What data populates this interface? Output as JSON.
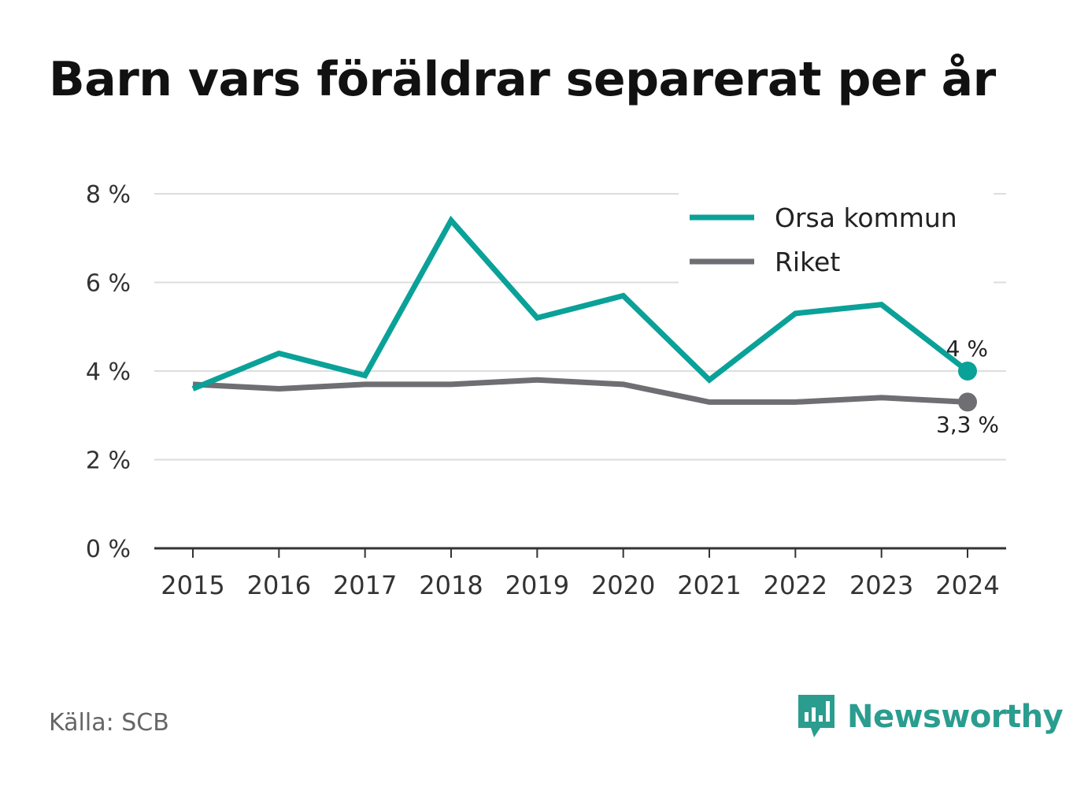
{
  "title": "Barn vars föräldrar separerat per år",
  "source": "Källa: SCB",
  "brand": {
    "name": "Newsworthy",
    "color": "#2a9d8f",
    "icon": "bar-chart-bubble-icon"
  },
  "chart_data": {
    "type": "line",
    "title": "Barn vars föräldrar separerat per år",
    "x": [
      "2015",
      "2016",
      "2017",
      "2018",
      "2019",
      "2020",
      "2021",
      "2022",
      "2023",
      "2024"
    ],
    "series": [
      {
        "name": "Orsa kommun",
        "color": "#0aa198",
        "values": [
          3.6,
          4.4,
          3.9,
          7.4,
          5.2,
          5.7,
          3.8,
          5.3,
          5.5,
          4.0
        ],
        "end_label": "4 %"
      },
      {
        "name": "Riket",
        "color": "#6e6e73",
        "values": [
          3.7,
          3.6,
          3.7,
          3.7,
          3.8,
          3.7,
          3.3,
          3.3,
          3.4,
          3.3
        ],
        "end_label": "3,3 %"
      }
    ],
    "ylim": [
      0,
      8
    ],
    "yticks": [
      0,
      2,
      4,
      6,
      8
    ],
    "ytick_labels": [
      "0 %",
      "2 %",
      "4 %",
      "6 %",
      "8 %"
    ],
    "grid": true,
    "legend": "top-right"
  }
}
